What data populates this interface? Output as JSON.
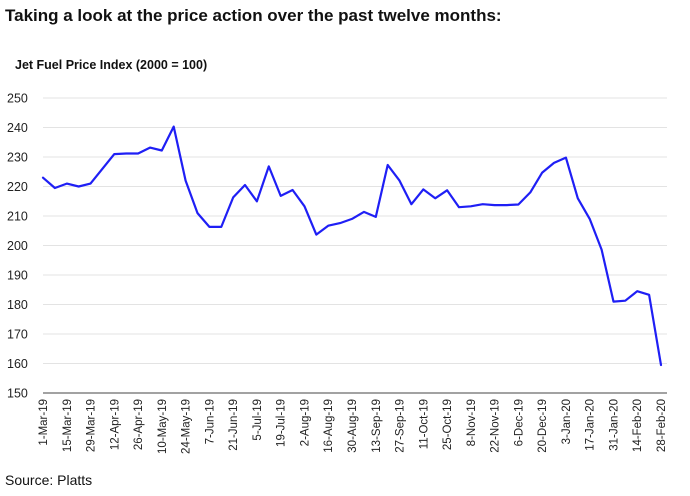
{
  "heading": "Taking a look at the price action over the past twelve months:",
  "source": "Source: Platts",
  "colors": {
    "line": "#1f1ff5",
    "grid": "#e3e3e3",
    "axis": "#444444",
    "text": "#222222"
  },
  "chart_data": {
    "type": "line",
    "title": "Jet Fuel Price Index (2000 = 100)",
    "xlabel": "",
    "ylabel": "",
    "ylim": [
      150,
      250
    ],
    "yticks": [
      150,
      160,
      170,
      180,
      190,
      200,
      210,
      220,
      230,
      240,
      250
    ],
    "grid": true,
    "categories": [
      "1-Mar-19",
      "8-Mar-19",
      "15-Mar-19",
      "22-Mar-19",
      "29-Mar-19",
      "5-Apr-19",
      "12-Apr-19",
      "19-Apr-19",
      "26-Apr-19",
      "3-May-19",
      "10-May-19",
      "17-May-19",
      "24-May-19",
      "31-May-19",
      "7-Jun-19",
      "14-Jun-19",
      "21-Jun-19",
      "28-Jun-19",
      "5-Jul-19",
      "12-Jul-19",
      "19-Jul-19",
      "26-Jul-19",
      "2-Aug-19",
      "9-Aug-19",
      "16-Aug-19",
      "23-Aug-19",
      "30-Aug-19",
      "6-Sep-19",
      "13-Sep-19",
      "20-Sep-19",
      "27-Sep-19",
      "4-Oct-19",
      "11-Oct-19",
      "18-Oct-19",
      "25-Oct-19",
      "1-Nov-19",
      "8-Nov-19",
      "15-Nov-19",
      "22-Nov-19",
      "29-Nov-19",
      "6-Dec-19",
      "13-Dec-19",
      "20-Dec-19",
      "27-Dec-19",
      "3-Jan-20",
      "10-Jan-20",
      "17-Jan-20",
      "24-Jan-20",
      "31-Jan-20",
      "7-Feb-20",
      "14-Feb-20",
      "21-Feb-20",
      "28-Feb-20"
    ],
    "tick_labels": [
      "1-Mar-19",
      "15-Mar-19",
      "29-Mar-19",
      "12-Apr-19",
      "26-Apr-19",
      "10-May-19",
      "24-May-19",
      "7-Jun-19",
      "21-Jun-19",
      "5-Jul-19",
      "19-Jul-19",
      "2-Aug-19",
      "16-Aug-19",
      "30-Aug-19",
      "13-Sep-19",
      "27-Sep-19",
      "11-Oct-19",
      "25-Oct-19",
      "8-Nov-19",
      "22-Nov-19",
      "6-Dec-19",
      "20-Dec-19",
      "3-Jan-20",
      "17-Jan-20",
      "31-Jan-20",
      "14-Feb-20",
      "28-Feb-20"
    ],
    "series": [
      {
        "values": [
          223,
          219.5,
          221,
          220,
          221,
          226,
          231,
          231.2,
          231.2,
          233.2,
          232.2,
          240.3,
          222,
          211,
          206.3,
          206.3,
          216.3,
          220.5,
          215,
          226.8,
          216.8,
          218.8,
          213.3,
          203.7,
          206.7,
          207.6,
          209,
          211.4,
          209.7,
          227.3,
          222,
          214,
          219,
          216,
          218.7,
          213,
          213.3,
          214,
          213.7,
          213.7,
          213.9,
          218,
          224.7,
          228,
          229.8,
          216,
          209,
          198.6,
          181,
          181.3,
          184.5,
          183.3,
          159.5
        ]
      }
    ]
  }
}
